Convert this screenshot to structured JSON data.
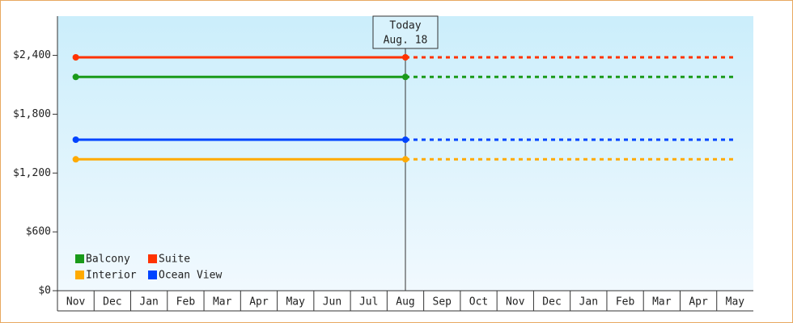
{
  "chart_data": {
    "type": "line",
    "categories": [
      "Nov",
      "Dec",
      "Jan",
      "Feb",
      "Mar",
      "Apr",
      "May",
      "Jun",
      "Jul",
      "Aug",
      "Sep",
      "Oct",
      "Nov",
      "Dec",
      "Jan",
      "Feb",
      "Mar",
      "Apr",
      "May"
    ],
    "series": [
      {
        "name": "Balcony",
        "color": "#1a9a1a",
        "values": [
          2180,
          2180,
          2180,
          2180,
          2180,
          2180,
          2180,
          2180,
          2180,
          2180,
          2180,
          2180,
          2180,
          2180,
          2180,
          2180,
          2180,
          2180,
          2180
        ]
      },
      {
        "name": "Suite",
        "color": "#ff3300",
        "values": [
          2380,
          2380,
          2380,
          2380,
          2380,
          2380,
          2380,
          2380,
          2380,
          2380,
          2380,
          2380,
          2380,
          2380,
          2380,
          2380,
          2380,
          2380,
          2380
        ]
      },
      {
        "name": "Interior",
        "color": "#ffaa00",
        "values": [
          1340,
          1340,
          1340,
          1340,
          1340,
          1340,
          1340,
          1340,
          1340,
          1340,
          1340,
          1340,
          1340,
          1340,
          1340,
          1340,
          1340,
          1340,
          1340
        ]
      },
      {
        "name": "Ocean View",
        "color": "#0044ff",
        "values": [
          1540,
          1540,
          1540,
          1540,
          1540,
          1540,
          1540,
          1540,
          1540,
          1540,
          1540,
          1540,
          1540,
          1540,
          1540,
          1540,
          1540,
          1540,
          1540
        ]
      }
    ],
    "annotation": {
      "lines": [
        "Today",
        "Aug. 18"
      ],
      "category": 9
    },
    "ylim": [
      0,
      2800
    ],
    "yticks": [
      {
        "value": 0,
        "label": "$0"
      },
      {
        "value": 600,
        "label": "$600"
      },
      {
        "value": 1200,
        "label": "$1,200"
      },
      {
        "value": 1800,
        "label": "$1,800"
      },
      {
        "value": 2400,
        "label": "$2,400"
      }
    ],
    "legend": "lower left"
  }
}
